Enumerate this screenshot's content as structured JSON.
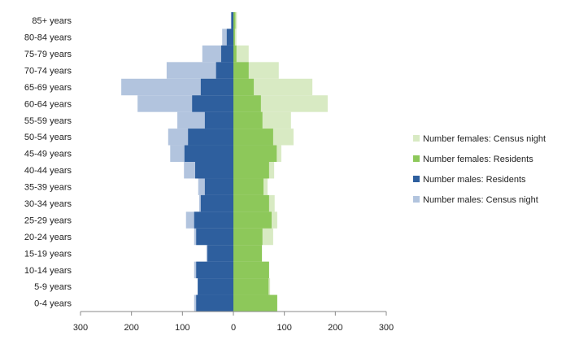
{
  "chart_data": {
    "type": "pyramid",
    "categories": [
      "85+ years",
      "80-84 years",
      "75-79 years",
      "70-74 years",
      "65-69 years",
      "60-64 years",
      "55-59 years",
      "50-54 years",
      "45-49 years",
      "40-44 years",
      "35-39 years",
      "30-34 years",
      "25-29 years",
      "20-24 years",
      "15-19 years",
      "10-14 years",
      "5-9 years",
      "0-4 years"
    ],
    "series": [
      {
        "name": "Number females: Census night",
        "color": "#d8eac3",
        "values": [
          7,
          6,
          30,
          89,
          155,
          185,
          113,
          118,
          94,
          80,
          67,
          81,
          86,
          78,
          56,
          70,
          72,
          86
        ]
      },
      {
        "name": "Number females: Residents",
        "color": "#8dc85a",
        "values": [
          4,
          3,
          6,
          30,
          40,
          54,
          57,
          78,
          85,
          70,
          59,
          70,
          75,
          57,
          56,
          70,
          69,
          86
        ]
      },
      {
        "name": "Number males: Residents",
        "color": "#2e5f9e",
        "values": [
          -4,
          -13,
          -24,
          -34,
          -64,
          -81,
          -56,
          -89,
          -96,
          -75,
          -56,
          -64,
          -77,
          -73,
          -51,
          -73,
          -70,
          -73
        ]
      },
      {
        "name": "Number males: Census night",
        "color": "#b2c4de",
        "values": [
          -5,
          -22,
          -61,
          -131,
          -220,
          -188,
          -110,
          -128,
          -124,
          -97,
          -69,
          -67,
          -93,
          -77,
          -53,
          -77,
          -70,
          -77
        ]
      }
    ],
    "draw_order": [
      0,
      3,
      1,
      2
    ],
    "xlim": [
      -300,
      300
    ],
    "xticks": [
      {
        "value": -300,
        "label": "300"
      },
      {
        "value": -200,
        "label": "200"
      },
      {
        "value": -100,
        "label": "100"
      },
      0,
      100,
      200,
      300
    ]
  }
}
